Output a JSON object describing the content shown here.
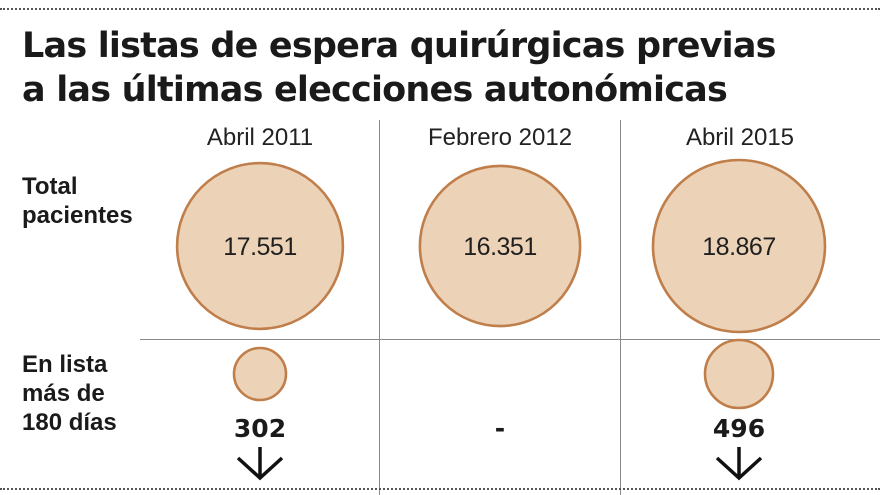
{
  "title": {
    "line1": "Las listas de espera quirúrgicas previas",
    "line2": "a las últimas elecciones autonómicas"
  },
  "chart_data": {
    "type": "bubble-table",
    "title": "Las listas de espera quirúrgicas previas a las últimas elecciones autonómicas",
    "columns": [
      "Abril 2011",
      "Febrero 2012",
      "Abril 2015"
    ],
    "rows": [
      {
        "label_lines": [
          "Total",
          "pacientes"
        ],
        "values": [
          17551,
          16351,
          18867
        ],
        "display": [
          "17.551",
          "16.351",
          "18.867"
        ]
      },
      {
        "label_lines": [
          "En lista",
          "más de",
          "180 días"
        ],
        "values": [
          302,
          null,
          496
        ],
        "display": [
          "302",
          "-",
          "496"
        ],
        "trend": [
          "down",
          null,
          "down"
        ]
      }
    ]
  },
  "colors": {
    "bubble_fill": "#ecd3b8",
    "bubble_stroke": "#bf7e4a",
    "text": "#1a1a1a"
  }
}
